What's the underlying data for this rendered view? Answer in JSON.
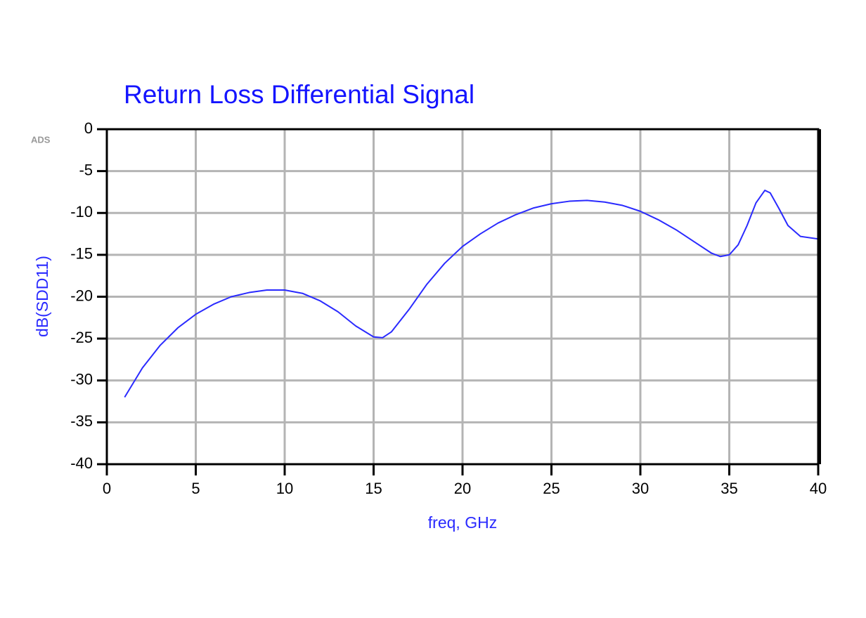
{
  "chart_data": {
    "type": "line",
    "title": "Return Loss Differential Signal",
    "watermark": "ADS",
    "x_label": "freq, GHz",
    "y_label": "dB(SDD11)",
    "xlim": [
      0,
      40
    ],
    "ylim": [
      -40,
      0
    ],
    "xticks": [
      0,
      5,
      10,
      15,
      20,
      25,
      30,
      35,
      40
    ],
    "yticks": [
      0,
      -5,
      -10,
      -15,
      -20,
      -25,
      -30,
      -35,
      -40
    ],
    "grid": true,
    "x": [
      1,
      2,
      3,
      4,
      5,
      6,
      7,
      8,
      9,
      10,
      11,
      12,
      13,
      14,
      15,
      15.5,
      16,
      17,
      18,
      19,
      20,
      21,
      22,
      23,
      24,
      25,
      26,
      27,
      28,
      29,
      30,
      31,
      32,
      33,
      34,
      34.5,
      35,
      35.5,
      36,
      36.5,
      37,
      37.3,
      37.8,
      38.3,
      39,
      40
    ],
    "series": [
      {
        "name": "dB(SDD11)",
        "color": "#2a2aff",
        "values": [
          -32,
          -28.5,
          -25.8,
          -23.7,
          -22.1,
          -20.9,
          -20.0,
          -19.5,
          -19.2,
          -19.2,
          -19.6,
          -20.5,
          -21.8,
          -23.5,
          -24.8,
          -24.9,
          -24.2,
          -21.5,
          -18.5,
          -16,
          -14.0,
          -12.5,
          -11.2,
          -10.2,
          -9.4,
          -8.9,
          -8.6,
          -8.5,
          -8.7,
          -9.1,
          -9.8,
          -10.8,
          -12.0,
          -13.4,
          -14.8,
          -15.2,
          -15.0,
          -13.8,
          -11.5,
          -8.8,
          -7.3,
          -7.6,
          -9.5,
          -11.5,
          -12.8,
          -13.1
        ]
      }
    ]
  }
}
